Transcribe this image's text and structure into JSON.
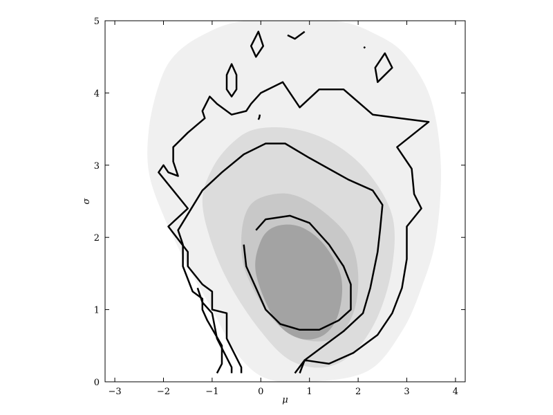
{
  "chart_data": {
    "type": "contour",
    "xlabel": "μ",
    "ylabel": "σ",
    "xlim": [
      -3.2,
      4.2
    ],
    "ylim": [
      0,
      5
    ],
    "xticks": [
      -3,
      -2,
      -1,
      0,
      1,
      2,
      3,
      4
    ],
    "yticks": [
      0,
      1,
      2,
      3,
      4,
      5
    ],
    "xtick_labels": [
      "−3",
      "−2",
      "−1",
      "0",
      "1",
      "2",
      "3",
      "4"
    ],
    "ytick_labels": [
      "0",
      "1",
      "2",
      "3",
      "4",
      "5"
    ],
    "grid": false,
    "colors": {
      "outer_region": "#f0f0f0",
      "middle_region": "#dcdcdc",
      "inner_region": "#c8c8c8",
      "core_region": "#a3a3a3",
      "contour_line": "#000000",
      "axes": "#000000"
    },
    "filled_regions": [
      {
        "level": "outer",
        "points": [
          [
            -2.3,
            3.5
          ],
          [
            -2.1,
            4.1
          ],
          [
            -1.8,
            4.5
          ],
          [
            -1.2,
            4.8
          ],
          [
            -0.3,
            5.0
          ],
          [
            1.5,
            5.0
          ],
          [
            2.4,
            4.8
          ],
          [
            3.0,
            4.5
          ],
          [
            3.5,
            3.9
          ],
          [
            3.7,
            3.0
          ],
          [
            3.6,
            2.0
          ],
          [
            3.3,
            1.3
          ],
          [
            2.9,
            0.7
          ],
          [
            2.2,
            0.15
          ],
          [
            1.0,
            0.0
          ],
          [
            0.1,
            0.05
          ],
          [
            -0.5,
            0.4
          ],
          [
            -1.0,
            1.0
          ],
          [
            -1.5,
            1.6
          ],
          [
            -2.0,
            2.3
          ],
          [
            -2.3,
            2.9
          ]
        ]
      },
      {
        "level": "middle",
        "points": [
          [
            -1.2,
            2.5
          ],
          [
            -1.0,
            2.95
          ],
          [
            -0.6,
            3.3
          ],
          [
            -0.1,
            3.5
          ],
          [
            0.7,
            3.5
          ],
          [
            1.5,
            3.3
          ],
          [
            2.2,
            2.9
          ],
          [
            2.7,
            2.3
          ],
          [
            2.7,
            1.6
          ],
          [
            2.4,
            0.9
          ],
          [
            1.9,
            0.4
          ],
          [
            1.3,
            0.2
          ],
          [
            0.6,
            0.3
          ],
          [
            0.0,
            0.7
          ],
          [
            -0.6,
            1.3
          ],
          [
            -1.0,
            1.9
          ]
        ]
      },
      {
        "level": "inner",
        "points": [
          [
            -0.3,
            2.35
          ],
          [
            0.0,
            2.55
          ],
          [
            0.6,
            2.6
          ],
          [
            1.2,
            2.4
          ],
          [
            1.8,
            2.0
          ],
          [
            2.0,
            1.5
          ],
          [
            1.9,
            0.95
          ],
          [
            1.5,
            0.6
          ],
          [
            0.8,
            0.6
          ],
          [
            0.2,
            0.9
          ],
          [
            -0.3,
            1.5
          ],
          [
            -0.4,
            1.95
          ]
        ]
      },
      {
        "level": "core",
        "points": [
          [
            -0.1,
            1.5
          ],
          [
            0.0,
            1.95
          ],
          [
            0.3,
            2.15
          ],
          [
            0.8,
            2.15
          ],
          [
            1.3,
            1.9
          ],
          [
            1.65,
            1.45
          ],
          [
            1.6,
            0.95
          ],
          [
            1.3,
            0.65
          ],
          [
            0.8,
            0.6
          ],
          [
            0.3,
            0.85
          ]
        ]
      }
    ],
    "contour_lines": [
      {
        "level": "outer",
        "points": [
          [
            -0.4,
            0.12
          ],
          [
            -0.4,
            0.2
          ],
          [
            -0.7,
            0.6
          ],
          [
            -0.7,
            0.95
          ],
          [
            -1.0,
            1.0
          ],
          [
            -1.0,
            1.25
          ],
          [
            -1.2,
            1.35
          ],
          [
            -1.5,
            1.6
          ],
          [
            -1.5,
            1.8
          ],
          [
            -1.9,
            2.15
          ],
          [
            -1.5,
            2.4
          ],
          [
            -1.8,
            2.65
          ],
          [
            -2.1,
            2.9
          ],
          [
            -2.0,
            3.0
          ],
          [
            -1.9,
            2.9
          ],
          [
            -1.7,
            2.85
          ],
          [
            -1.8,
            3.05
          ],
          [
            -1.8,
            3.25
          ],
          [
            -1.5,
            3.45
          ],
          [
            -1.15,
            3.65
          ],
          [
            -1.2,
            3.75
          ],
          [
            -1.05,
            3.95
          ],
          [
            -0.9,
            3.85
          ],
          [
            -0.6,
            3.7
          ],
          [
            -0.3,
            3.75
          ],
          [
            -0.2,
            3.85
          ],
          [
            0.0,
            4.0
          ],
          [
            0.45,
            4.15
          ],
          [
            0.8,
            3.8
          ],
          [
            1.2,
            4.05
          ],
          [
            1.7,
            4.05
          ],
          [
            2.3,
            3.7
          ],
          [
            2.85,
            3.65
          ],
          [
            3.45,
            3.6
          ],
          [
            2.8,
            3.25
          ],
          [
            3.1,
            2.95
          ],
          [
            3.15,
            2.6
          ],
          [
            3.3,
            2.4
          ],
          [
            3.0,
            2.15
          ],
          [
            3.0,
            1.7
          ],
          [
            2.9,
            1.3
          ],
          [
            2.7,
            0.95
          ],
          [
            2.4,
            0.65
          ],
          [
            1.9,
            0.4
          ],
          [
            1.4,
            0.25
          ],
          [
            0.9,
            0.3
          ],
          [
            0.8,
            0.12
          ]
        ]
      },
      {
        "level": "outer-left-tail",
        "points": [
          [
            -0.6,
            0.12
          ],
          [
            -0.6,
            0.2
          ],
          [
            -0.9,
            0.6
          ],
          [
            -1.0,
            0.95
          ],
          [
            -1.2,
            1.1
          ],
          [
            -1.3,
            1.3
          ]
        ]
      },
      {
        "level": "middle",
        "points": [
          [
            -0.9,
            0.12
          ],
          [
            -0.8,
            0.25
          ],
          [
            -0.8,
            0.5
          ],
          [
            -1.1,
            0.85
          ],
          [
            -1.2,
            1.0
          ],
          [
            -1.2,
            1.15
          ],
          [
            -1.4,
            1.25
          ],
          [
            -1.6,
            1.6
          ],
          [
            -1.6,
            1.9
          ],
          [
            -1.7,
            2.1
          ],
          [
            -1.2,
            2.65
          ],
          [
            -0.8,
            2.9
          ],
          [
            -0.35,
            3.15
          ],
          [
            0.1,
            3.3
          ],
          [
            0.5,
            3.3
          ],
          [
            1.0,
            3.1
          ],
          [
            1.8,
            2.8
          ],
          [
            2.3,
            2.65
          ],
          [
            2.5,
            2.45
          ],
          [
            2.45,
            2.1
          ],
          [
            2.4,
            1.8
          ],
          [
            2.25,
            1.3
          ],
          [
            2.1,
            0.95
          ],
          [
            1.7,
            0.7
          ],
          [
            1.2,
            0.45
          ],
          [
            0.9,
            0.3
          ],
          [
            0.7,
            0.12
          ]
        ]
      },
      {
        "level": "inner",
        "points": [
          [
            -0.1,
            2.1
          ],
          [
            0.1,
            2.25
          ],
          [
            0.6,
            2.3
          ],
          [
            1.0,
            2.2
          ],
          [
            1.4,
            1.9
          ],
          [
            1.7,
            1.6
          ],
          [
            1.85,
            1.35
          ],
          [
            1.85,
            1.0
          ],
          [
            1.6,
            0.85
          ],
          [
            1.2,
            0.72
          ],
          [
            0.8,
            0.72
          ],
          [
            0.4,
            0.8
          ],
          [
            0.1,
            1.0
          ],
          [
            -0.1,
            1.3
          ],
          [
            -0.3,
            1.6
          ],
          [
            -0.35,
            1.9
          ]
        ]
      }
    ],
    "island_contours": [
      {
        "points": [
          [
            -0.1,
            4.5
          ],
          [
            0.05,
            4.65
          ],
          [
            -0.05,
            4.85
          ],
          [
            -0.2,
            4.65
          ]
        ]
      },
      {
        "points": [
          [
            -0.6,
            3.95
          ],
          [
            -0.5,
            4.05
          ],
          [
            -0.5,
            4.25
          ],
          [
            -0.6,
            4.4
          ],
          [
            -0.7,
            4.25
          ],
          [
            -0.7,
            4.05
          ]
        ]
      },
      {
        "points": [
          [
            2.4,
            4.15
          ],
          [
            2.55,
            4.25
          ],
          [
            2.7,
            4.35
          ],
          [
            2.55,
            4.55
          ],
          [
            2.35,
            4.35
          ]
        ]
      },
      {
        "points": [
          [
            0.55,
            4.8
          ],
          [
            0.7,
            4.75
          ],
          [
            0.9,
            4.85
          ]
        ]
      },
      {
        "points": [
          [
            -0.05,
            3.63
          ],
          [
            -0.03,
            3.66
          ],
          [
            -0.02,
            3.7
          ]
        ]
      },
      {
        "points": [
          [
            2.12,
            4.62
          ],
          [
            2.14,
            4.64
          ]
        ]
      }
    ]
  }
}
